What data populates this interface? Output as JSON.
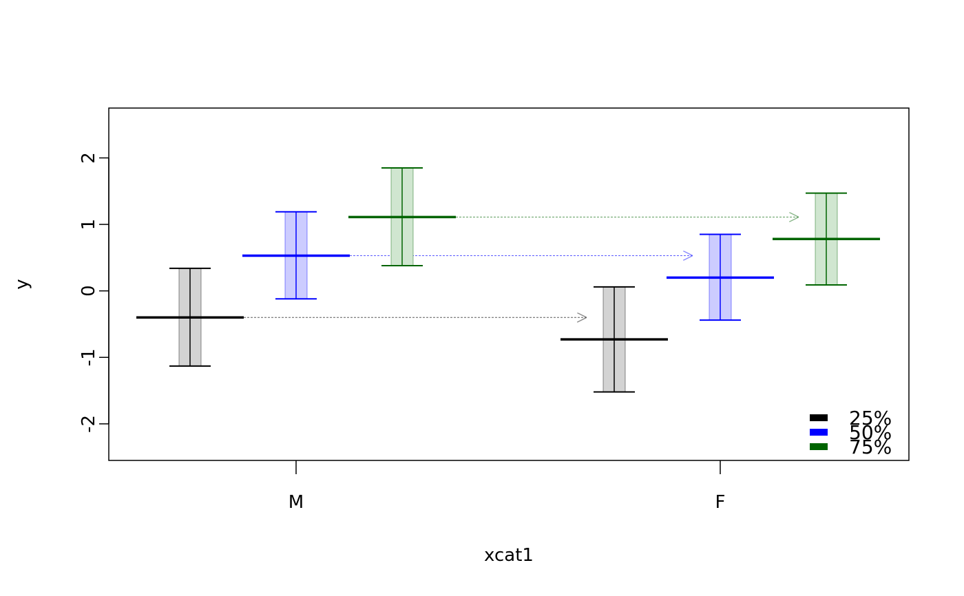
{
  "chart_data": {
    "type": "interval",
    "title": "",
    "xlabel": "xcat1",
    "ylabel": "y",
    "categories": [
      "M",
      "F"
    ],
    "ylim": [
      -2.55,
      2.75
    ],
    "yticks": [
      -2,
      -1,
      0,
      1,
      2
    ],
    "grid": false,
    "legend_position": "bottom-right",
    "series": [
      {
        "name": "25%",
        "color": "#000000",
        "fill": "#d3d3d3",
        "estimates": [
          -0.4,
          -0.73
        ],
        "lower": [
          -1.13,
          -1.52
        ],
        "upper": [
          0.34,
          0.06
        ]
      },
      {
        "name": "50%",
        "color": "#0000ff",
        "fill": "#ccccff",
        "estimates": [
          0.53,
          0.2
        ],
        "lower": [
          -0.12,
          -0.44
        ],
        "upper": [
          1.19,
          0.85
        ]
      },
      {
        "name": "75%",
        "color": "#006400",
        "fill": "#d0e6d0",
        "estimates": [
          1.11,
          0.78
        ],
        "lower": [
          0.38,
          0.09
        ],
        "upper": [
          1.85,
          1.47
        ]
      }
    ]
  }
}
